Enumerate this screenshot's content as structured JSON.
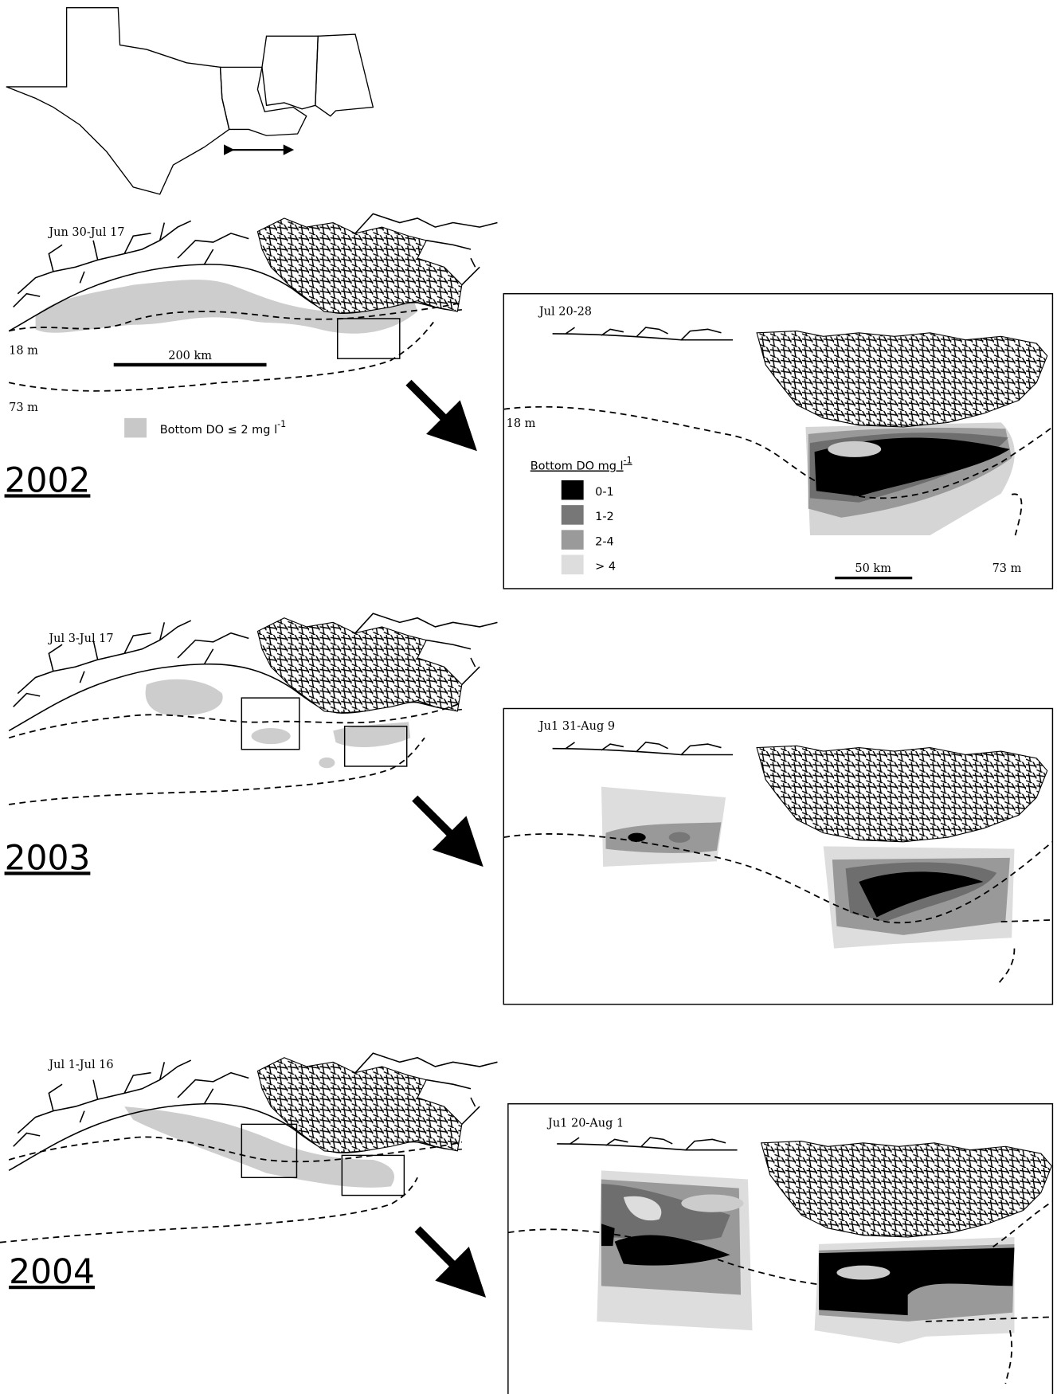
{
  "panels": [
    {
      "year": "2002",
      "dates": "Jun 30-Jul 17",
      "isobath_shallow": "18 m",
      "isobath_deep": "73 m",
      "scale_bar": "200 km",
      "legend": {
        "label": "Bottom DO ≤ 2 mg l",
        "superscript": "-1"
      },
      "inset": {
        "dates": "Jul 20-28",
        "isobath_shallow": "18 m",
        "isobath_deep": "73 m",
        "scale_bar": "50 km",
        "legend": {
          "title": "Bottom DO mg l",
          "title_superscript": "-1",
          "classes": [
            "0-1",
            "1-2",
            "2-4",
            "> 4"
          ]
        }
      }
    },
    {
      "year": "2003",
      "dates": "Jul 3-Jul 17",
      "inset": {
        "dates": "Ju1 31-Aug 9"
      }
    },
    {
      "year": "2004",
      "dates": "Jul 1-Jul 16",
      "inset": {
        "dates": "Ju1 20-Aug 1"
      }
    }
  ]
}
